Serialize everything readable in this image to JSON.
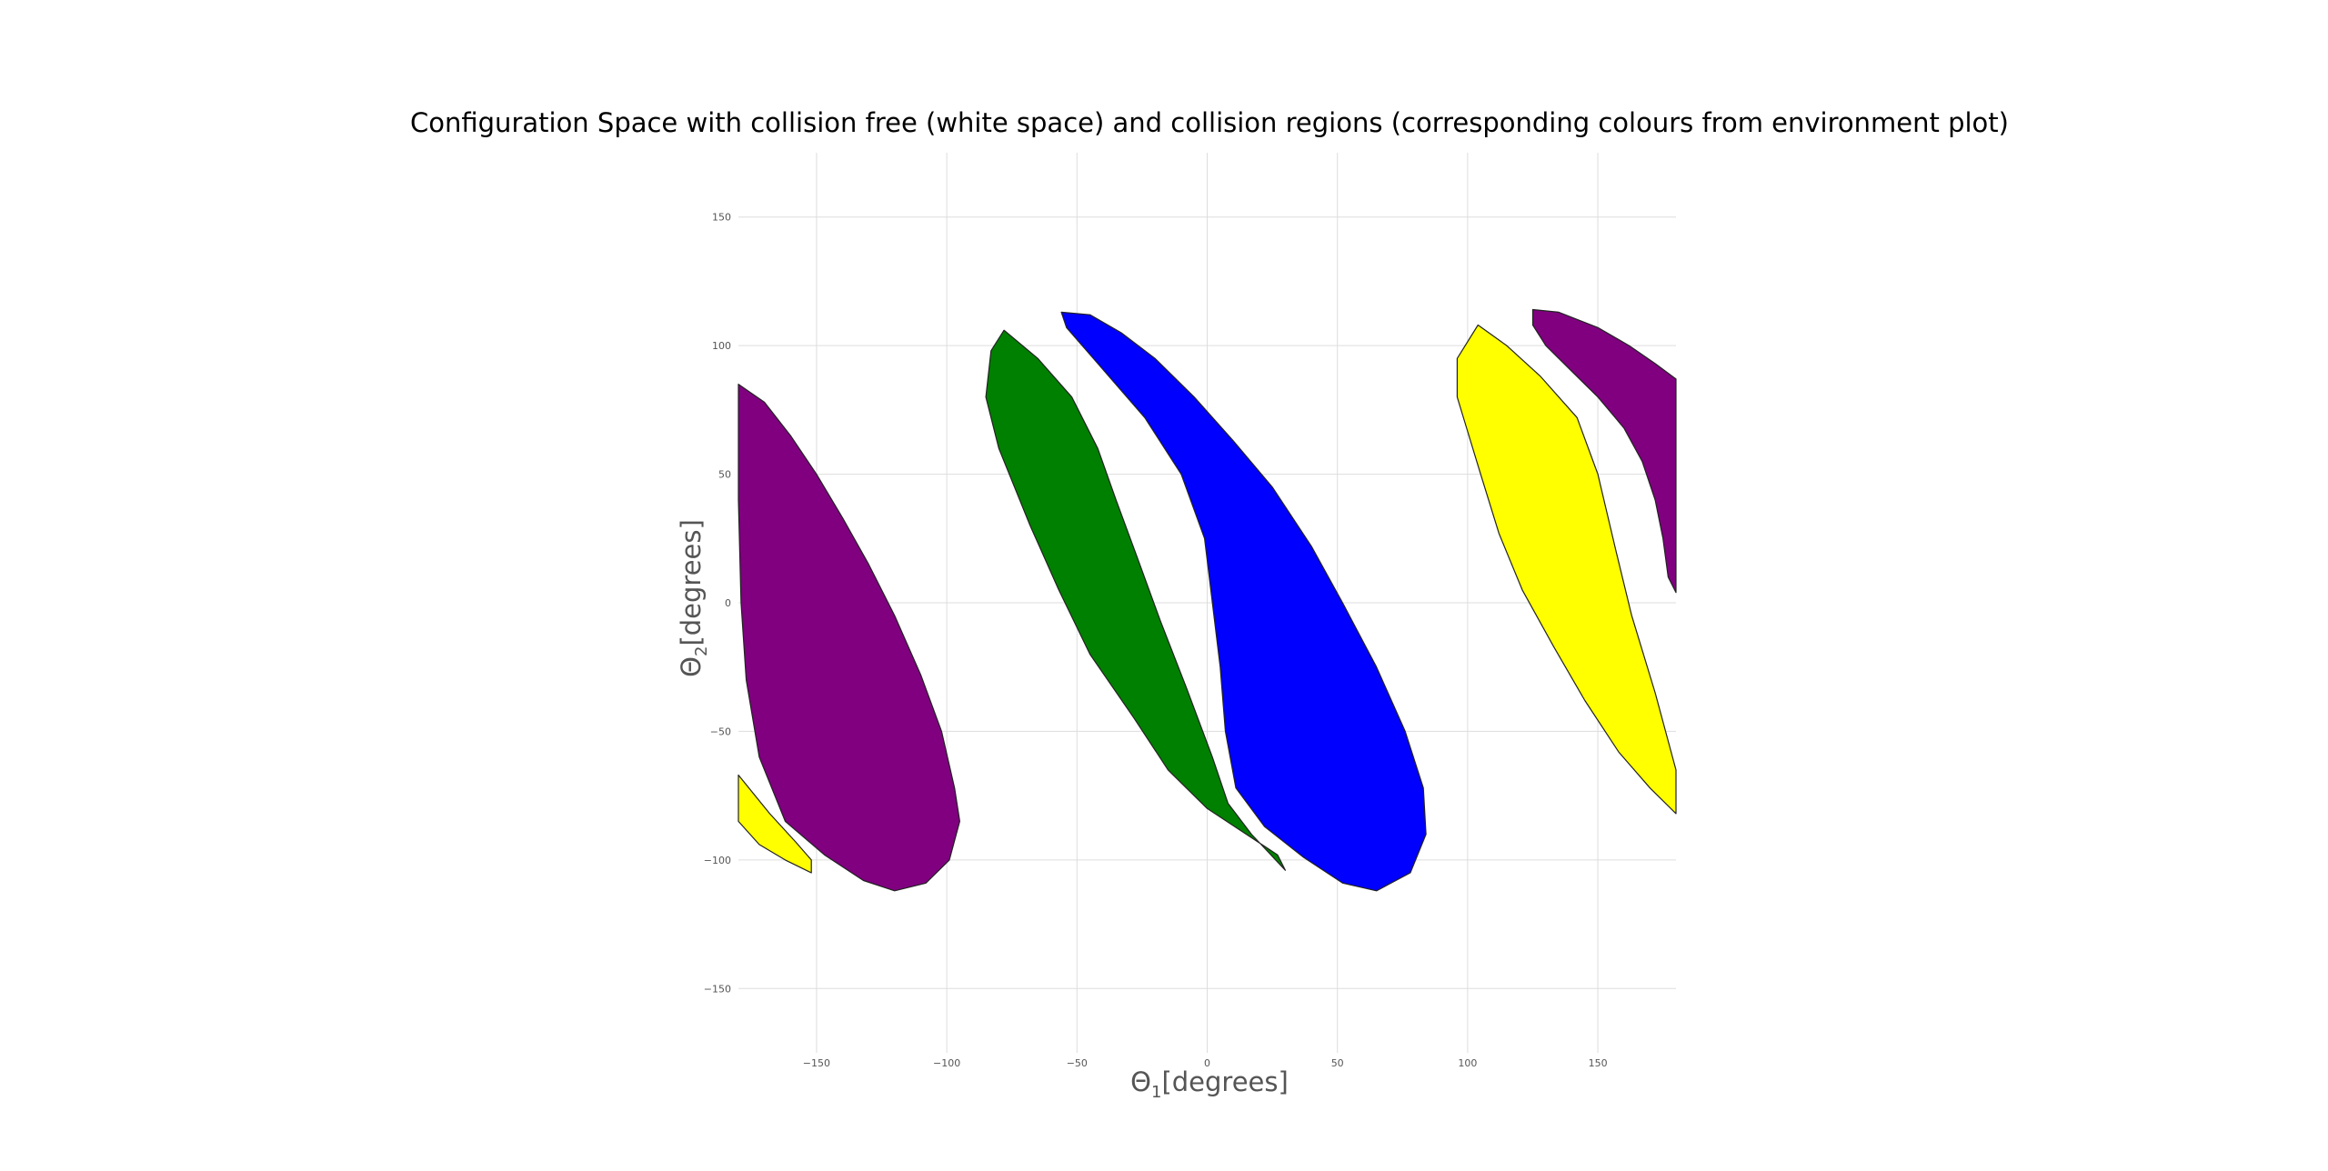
{
  "chart_data": {
    "type": "heatmap",
    "title": "Configuration Space with collision free (white space) and collision regions (corresponding colours from environment plot)",
    "xlabel": {
      "symbol": "Θ",
      "sub": "1",
      "unit": "[degrees]"
    },
    "ylabel": {
      "symbol": "Θ",
      "sub": "2",
      "unit": "[degrees]"
    },
    "xlim": [
      -180,
      180
    ],
    "ylim": [
      -175,
      175
    ],
    "xticks": [
      -150,
      -100,
      -50,
      0,
      50,
      100,
      150
    ],
    "yticks": [
      -150,
      -100,
      -50,
      0,
      50,
      100,
      150
    ],
    "grid": true,
    "background": "#ffffff",
    "regions": [
      {
        "color": "purple",
        "fill": "#800080",
        "outline": [
          [
            -180,
            85
          ],
          [
            -170,
            78
          ],
          [
            -160,
            65
          ],
          [
            -150,
            50
          ],
          [
            -140,
            33
          ],
          [
            -130,
            15
          ],
          [
            -120,
            -5
          ],
          [
            -110,
            -28
          ],
          [
            -102,
            -50
          ],
          [
            -97,
            -72
          ],
          [
            -95,
            -85
          ],
          [
            -99,
            -100
          ],
          [
            -108,
            -109
          ],
          [
            -120,
            -112
          ],
          [
            -132,
            -108
          ],
          [
            -147,
            -98
          ],
          [
            -162,
            -85
          ],
          [
            -172,
            -60
          ],
          [
            -177,
            -30
          ],
          [
            -179,
            0
          ],
          [
            -180,
            40
          ]
        ]
      },
      {
        "color": "yellow",
        "fill": "#ffff00",
        "outline": [
          [
            -180,
            -67
          ],
          [
            -168,
            -82
          ],
          [
            -158,
            -93
          ],
          [
            -152,
            -100
          ],
          [
            -152,
            -105
          ],
          [
            -162,
            -100
          ],
          [
            -172,
            -94
          ],
          [
            -180,
            -85
          ]
        ]
      },
      {
        "color": "green",
        "fill": "#008000",
        "outline": [
          [
            -78,
            106
          ],
          [
            -65,
            95
          ],
          [
            -52,
            80
          ],
          [
            -42,
            60
          ],
          [
            -35,
            40
          ],
          [
            -27,
            18
          ],
          [
            -18,
            -7
          ],
          [
            -8,
            -33
          ],
          [
            2,
            -60
          ],
          [
            8,
            -78
          ],
          [
            17,
            -90
          ],
          [
            30,
            -104
          ],
          [
            27,
            -98
          ],
          [
            15,
            -90
          ],
          [
            0,
            -80
          ],
          [
            -15,
            -65
          ],
          [
            -28,
            -45
          ],
          [
            -45,
            -20
          ],
          [
            -57,
            5
          ],
          [
            -68,
            30
          ],
          [
            -80,
            60
          ],
          [
            -85,
            80
          ],
          [
            -83,
            98
          ]
        ]
      },
      {
        "color": "blue",
        "fill": "#0000ff",
        "outline": [
          [
            -56,
            113
          ],
          [
            -45,
            112
          ],
          [
            -33,
            105
          ],
          [
            -20,
            95
          ],
          [
            -5,
            80
          ],
          [
            10,
            63
          ],
          [
            25,
            45
          ],
          [
            40,
            22
          ],
          [
            52,
            0
          ],
          [
            65,
            -25
          ],
          [
            76,
            -50
          ],
          [
            83,
            -72
          ],
          [
            84,
            -90
          ],
          [
            78,
            -105
          ],
          [
            65,
            -112
          ],
          [
            52,
            -109
          ],
          [
            37,
            -99
          ],
          [
            22,
            -87
          ],
          [
            11,
            -72
          ],
          [
            7,
            -50
          ],
          [
            5,
            -25
          ],
          [
            2,
            0
          ],
          [
            -1,
            25
          ],
          [
            -10,
            50
          ],
          [
            -24,
            72
          ],
          [
            -42,
            93
          ],
          [
            -54,
            107
          ]
        ]
      },
      {
        "color": "yellow",
        "fill": "#ffff00",
        "outline": [
          [
            104,
            108
          ],
          [
            115,
            100
          ],
          [
            128,
            88
          ],
          [
            142,
            72
          ],
          [
            150,
            50
          ],
          [
            157,
            20
          ],
          [
            163,
            -5
          ],
          [
            172,
            -35
          ],
          [
            180,
            -65
          ],
          [
            180,
            -82
          ],
          [
            170,
            -72
          ],
          [
            158,
            -58
          ],
          [
            145,
            -38
          ],
          [
            133,
            -17
          ],
          [
            121,
            5
          ],
          [
            112,
            27
          ],
          [
            105,
            50
          ],
          [
            99,
            70
          ],
          [
            96,
            80
          ],
          [
            96,
            95
          ]
        ]
      },
      {
        "color": "purple",
        "fill": "#800080",
        "outline": [
          [
            125,
            114
          ],
          [
            135,
            113
          ],
          [
            150,
            107
          ],
          [
            162,
            100
          ],
          [
            172,
            93
          ],
          [
            180,
            87
          ],
          [
            180,
            4
          ],
          [
            177,
            10
          ],
          [
            175,
            25
          ],
          [
            172,
            40
          ],
          [
            167,
            55
          ],
          [
            160,
            68
          ],
          [
            150,
            80
          ],
          [
            140,
            90
          ],
          [
            130,
            100
          ],
          [
            125,
            108
          ]
        ]
      }
    ]
  }
}
